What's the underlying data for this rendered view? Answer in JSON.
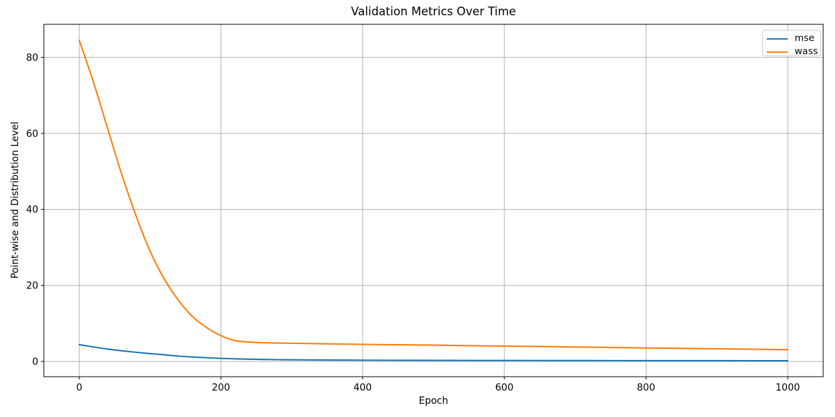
{
  "figure": {
    "background": "#ffffff"
  },
  "chart_data": {
    "type": "line",
    "title": "Validation Metrics Over Time",
    "xlabel": "Epoch",
    "ylabel": "Point-wise and Distribution Level",
    "xlim": [
      -50,
      1050
    ],
    "ylim": [
      -4.0,
      88.7
    ],
    "xticks": [
      0,
      200,
      400,
      600,
      800,
      1000
    ],
    "yticks": [
      0,
      20,
      40,
      60,
      80
    ],
    "grid": true,
    "legend_position": "upper right",
    "x": [
      0,
      20,
      40,
      60,
      80,
      100,
      120,
      140,
      160,
      180,
      200,
      220,
      240,
      260,
      280,
      300,
      350,
      400,
      450,
      500,
      550,
      600,
      650,
      700,
      750,
      800,
      850,
      900,
      950,
      1000
    ],
    "series": [
      {
        "name": "mse",
        "color": "#1f77b4",
        "values": [
          4.42,
          3.82,
          3.28,
          2.82,
          2.42,
          2.07,
          1.77,
          1.42,
          1.18,
          0.98,
          0.82,
          0.7,
          0.61,
          0.54,
          0.48,
          0.44,
          0.38,
          0.34,
          0.31,
          0.29,
          0.27,
          0.26,
          0.25,
          0.24,
          0.23,
          0.22,
          0.21,
          0.21,
          0.2,
          0.2
        ]
      },
      {
        "name": "wass",
        "color": "#ff7f0e",
        "values": [
          84.5,
          73.5,
          61.3,
          49.2,
          38.4,
          29.0,
          21.7,
          16.1,
          11.8,
          8.9,
          6.8,
          5.5,
          5.1,
          4.95,
          4.85,
          4.8,
          4.65,
          4.5,
          4.4,
          4.3,
          4.17,
          4.05,
          3.93,
          3.8,
          3.68,
          3.56,
          3.45,
          3.34,
          3.22,
          3.1
        ]
      }
    ],
    "colors": {
      "grid": "#b0b0b0",
      "spine": "#000000",
      "text": "#000000",
      "legend_border": "#cccccc"
    }
  }
}
